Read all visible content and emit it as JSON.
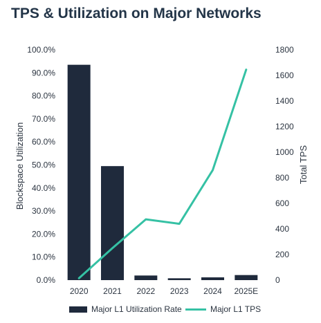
{
  "chart_data": {
    "type": "bar+line",
    "title": "TPS & Utilization on Major Networks",
    "categories": [
      "2020",
      "2021",
      "2022",
      "2023",
      "2024",
      "2025E"
    ],
    "series": [
      {
        "name": "Major L1 Utilization Rate",
        "type": "bar",
        "axis": "left",
        "values": [
          93.5,
          49.5,
          2.0,
          0.8,
          1.2,
          2.2
        ]
      },
      {
        "name": "Major L1 TPS",
        "type": "line",
        "axis": "right",
        "values": [
          15,
          250,
          475,
          440,
          860,
          1645
        ]
      }
    ],
    "ylabel": "Blockspace Utilization",
    "y2label": "Total TPS",
    "ylim": [
      0,
      100
    ],
    "y2lim": [
      0,
      1800
    ],
    "yticks": [
      "0.0%",
      "10.0%",
      "20.0%",
      "30.0%",
      "40.0%",
      "50.0%",
      "60.0%",
      "70.0%",
      "80.0%",
      "90.0%",
      "100.0%"
    ],
    "y2ticks": [
      "0",
      "200",
      "400",
      "600",
      "800",
      "1000",
      "1200",
      "1400",
      "1600",
      "1800"
    ],
    "grid": false,
    "legend": "bottom",
    "colors": {
      "bar": "#1f2a3c",
      "line": "#35c1a4"
    }
  }
}
